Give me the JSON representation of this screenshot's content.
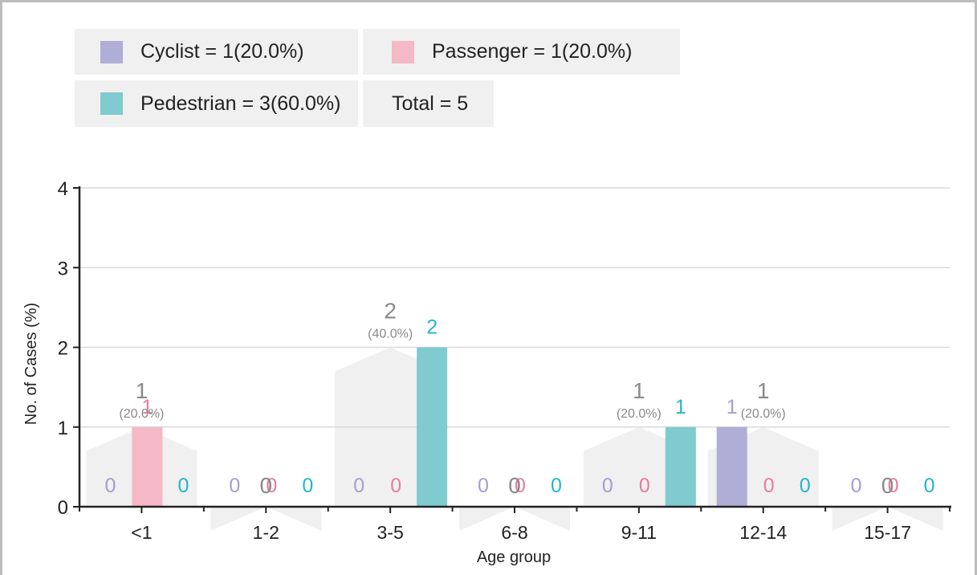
{
  "legend": {
    "cyclist": "Cyclist = 1(20.0%)",
    "passenger": "Passenger = 1(20.0%)",
    "pedestrian": "Pedestrian = 3(60.0%)",
    "total": "Total = 5"
  },
  "colors": {
    "cyclist": "#b0aed6",
    "passenger": "#f5b8c6",
    "pedestrian": "#7fcbcf",
    "cyclist_text": "#a59dd4",
    "passenger_text": "#eb7aa0",
    "pedestrian_text": "#22b7c9",
    "house": "#eff0ef",
    "total_text": "#8a8a8a",
    "grid": "#d9d9d9",
    "axis": "#222222"
  },
  "chart_data": {
    "type": "bar",
    "xlabel": "Age group",
    "ylabel": "No. of Cases (%)",
    "ylim": [
      0,
      4
    ],
    "yticks": [
      "0",
      "1",
      "2",
      "3",
      "4"
    ],
    "grid": true,
    "legend_position": "top",
    "categories": [
      "<1",
      "1-2",
      "3-5",
      "6-8",
      "9-11",
      "12-14",
      "15-17"
    ],
    "series": [
      {
        "name": "Cyclist",
        "values": [
          0,
          0,
          0,
          0,
          0,
          1,
          0
        ]
      },
      {
        "name": "Passenger",
        "values": [
          1,
          0,
          0,
          0,
          0,
          0,
          0
        ]
      },
      {
        "name": "Pedestrian",
        "values": [
          0,
          0,
          2,
          0,
          1,
          0,
          0
        ]
      }
    ],
    "totals": [
      1,
      0,
      2,
      0,
      1,
      1,
      0
    ],
    "total_percent_labels": [
      "(20.0%)",
      "",
      "(40.0%)",
      "",
      "(20.0%)",
      "(20.0%)",
      ""
    ]
  }
}
